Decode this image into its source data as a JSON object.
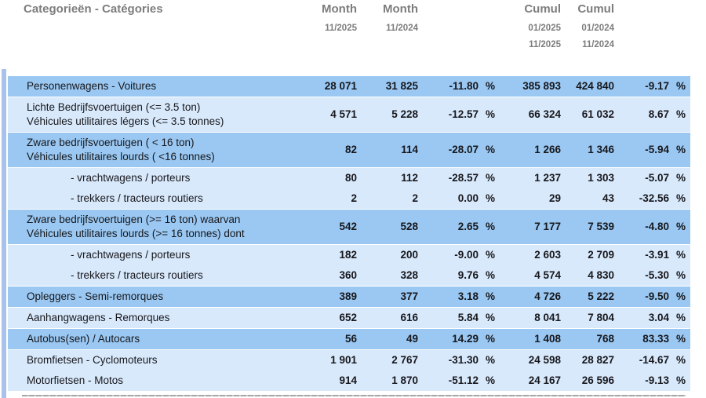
{
  "header": {
    "category_label": "Categorieën - Catégories",
    "month_col_current": {
      "title": "Month",
      "period": "11/2025"
    },
    "month_col_previous": {
      "title": "Month",
      "period": "11/2024"
    },
    "cumul_col_current": {
      "title": "Cumul",
      "period_from": "01/2025",
      "period_to": "11/2025"
    },
    "cumul_col_previous": {
      "title": "Cumul",
      "period_from": "01/2024",
      "period_to": "11/2024"
    }
  },
  "table": {
    "percent_sign": "%",
    "rows": [
      {
        "label1": "Personenwagens - Voitures",
        "label2": "",
        "shade": "medium",
        "indent": false,
        "m1": "28 071",
        "m2": "31 825",
        "p1": "-11.80",
        "c1": "385 893",
        "c2": "424 840",
        "p2": "-9.17"
      },
      {
        "label1": "Lichte Bedrijfsvoertuigen (<= 3.5 ton)",
        "label2": "Véhicules utilitaires légers (<= 3.5 tonnes)",
        "shade": "light",
        "indent": false,
        "m1": "4 571",
        "m2": "5 228",
        "p1": "-12.57",
        "c1": "66 324",
        "c2": "61 032",
        "p2": "8.67"
      },
      {
        "label1": "Zware bedrijfsvoertuigen ( < 16 ton)",
        "label2": "Véhicules utilitaires lourds ( <16 tonnes)",
        "shade": "medium",
        "indent": false,
        "m1": "82",
        "m2": "114",
        "p1": "-28.07",
        "c1": "1 266",
        "c2": "1 346",
        "p2": "-5.94"
      },
      {
        "label1": "- vrachtwagens / porteurs",
        "label2": "",
        "shade": "light",
        "indent": true,
        "m1": "80",
        "m2": "112",
        "p1": "-28.57",
        "c1": "1 237",
        "c2": "1 303",
        "p2": "-5.07"
      },
      {
        "label1": "- trekkers / tracteurs routiers",
        "label2": "",
        "shade": "light",
        "indent": true,
        "m1": "2",
        "m2": "2",
        "p1": "0.00",
        "c1": "29",
        "c2": "43",
        "p2": "-32.56"
      },
      {
        "label1": "Zware bedrijfsvoertuigen (>= 16 ton) waarvan",
        "label2": "Véhicules utilitaires lourds (>= 16 tonnes) dont",
        "shade": "medium",
        "indent": false,
        "m1": "542",
        "m2": "528",
        "p1": "2.65",
        "c1": "7 177",
        "c2": "7 539",
        "p2": "-4.80"
      },
      {
        "label1": "- vrachtwagens / porteurs",
        "label2": "",
        "shade": "light",
        "indent": true,
        "m1": "182",
        "m2": "200",
        "p1": "-9.00",
        "c1": "2 603",
        "c2": "2 709",
        "p2": "-3.91"
      },
      {
        "label1": "- trekkers / tracteurs routiers",
        "label2": "",
        "shade": "light",
        "indent": true,
        "m1": "360",
        "m2": "328",
        "p1": "9.76",
        "c1": "4 574",
        "c2": "4 830",
        "p2": "-5.30"
      },
      {
        "label1": "Opleggers - Semi-remorques",
        "label2": "",
        "shade": "medium",
        "indent": false,
        "m1": "389",
        "m2": "377",
        "p1": "3.18",
        "c1": "4 726",
        "c2": "5 222",
        "p2": "-9.50"
      },
      {
        "label1": "Aanhangwagens - Remorques",
        "label2": "",
        "shade": "light",
        "indent": false,
        "m1": "652",
        "m2": "616",
        "p1": "5.84",
        "c1": "8 041",
        "c2": "7 804",
        "p2": "3.04"
      },
      {
        "label1": "Autobus(sen) / Autocars",
        "label2": "",
        "shade": "medium",
        "indent": false,
        "m1": "56",
        "m2": "49",
        "p1": "14.29",
        "c1": "1 408",
        "c2": "768",
        "p2": "83.33"
      },
      {
        "label1": "Bromfietsen - Cyclomoteurs",
        "label2": "",
        "shade": "light",
        "indent": false,
        "m1": "1 901",
        "m2": "2 767",
        "p1": "-31.30",
        "c1": "24 598",
        "c2": "28 827",
        "p2": "-14.67"
      },
      {
        "label1": "Motorfietsen - Motos",
        "label2": "",
        "shade": "light",
        "indent": false,
        "m1": "914",
        "m2": "1 870",
        "p1": "-51.12",
        "c1": "24 167",
        "c2": "26 596",
        "p2": "-9.13"
      }
    ]
  },
  "colors": {
    "row_medium_blue": "#9AC8F2",
    "row_light_blue": "#D8E9FB",
    "left_stripe_blue": "#A9C2E9",
    "header_text_gray": "#7D7D7D",
    "data_text": "#17171C"
  }
}
